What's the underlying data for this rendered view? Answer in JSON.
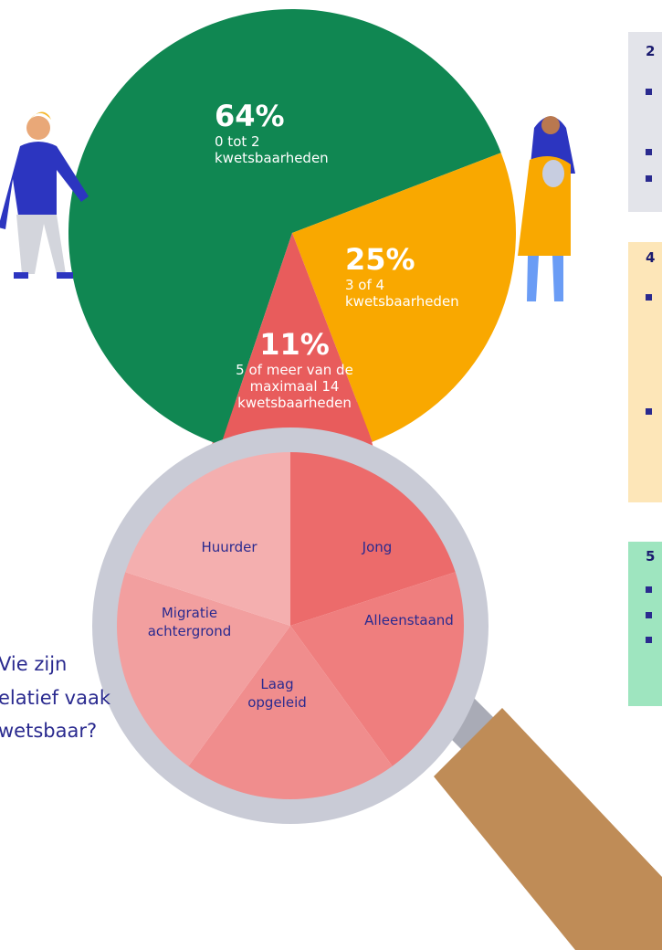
{
  "chart_data": {
    "type": "pie",
    "categories": [
      "0 tot 2 kwetsbaarheden",
      "3 of 4 kwetsbaarheden",
      "5 of meer van de maximaal 14 kwetsbaarheden"
    ],
    "values": [
      64,
      25,
      11
    ],
    "value_labels": [
      "64%",
      "25%",
      "11%"
    ],
    "colors": [
      "#108752",
      "#f9a800",
      "#e85c5c"
    ]
  },
  "magnifier": {
    "segments": [
      "Jong",
      "Alleenstaand",
      "Laag opgeleid",
      "Migratie achtergrond",
      "Huurder"
    ]
  },
  "question": [
    "Vie zijn",
    "elatief vaak",
    "wetsbaar?"
  ],
  "side_panels": [
    {
      "title": "2"
    },
    {
      "title": "4"
    },
    {
      "title": "5"
    }
  ]
}
